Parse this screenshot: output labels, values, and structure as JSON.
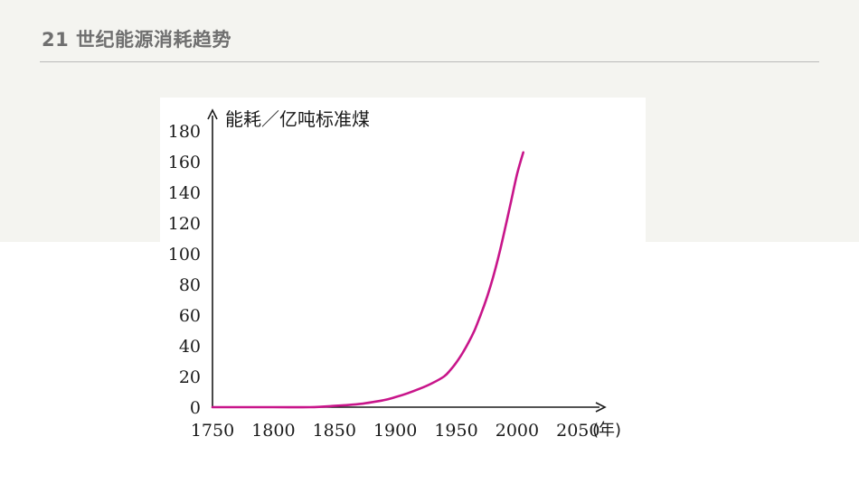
{
  "slide": {
    "title": "21 世纪能源消耗趋势"
  },
  "chart_data": {
    "type": "line",
    "ylabel": "能耗／亿吨标准煤",
    "xunit": "(年)",
    "xlim": [
      1750,
      2075
    ],
    "ylim": [
      0,
      180
    ],
    "x_ticks": [
      1750,
      1800,
      1850,
      1900,
      1950,
      2000,
      2050
    ],
    "y_ticks": [
      0,
      20,
      40,
      60,
      80,
      100,
      120,
      140,
      160,
      180
    ],
    "grid": false,
    "legend": "none",
    "series": [
      {
        "color": "#c8158a",
        "points": [
          [
            1750,
            0
          ],
          [
            1800,
            0
          ],
          [
            1830,
            0
          ],
          [
            1850,
            0.8
          ],
          [
            1870,
            2
          ],
          [
            1890,
            4.5
          ],
          [
            1900,
            6.5
          ],
          [
            1910,
            9
          ],
          [
            1920,
            12
          ],
          [
            1930,
            15.5
          ],
          [
            1940,
            20
          ],
          [
            1945,
            24
          ],
          [
            1950,
            29
          ],
          [
            1955,
            35
          ],
          [
            1960,
            42
          ],
          [
            1965,
            50
          ],
          [
            1970,
            60
          ],
          [
            1975,
            71
          ],
          [
            1980,
            84
          ],
          [
            1985,
            99
          ],
          [
            1990,
            116
          ],
          [
            1995,
            134
          ],
          [
            2000,
            152
          ],
          [
            2005,
            166
          ]
        ]
      }
    ]
  }
}
